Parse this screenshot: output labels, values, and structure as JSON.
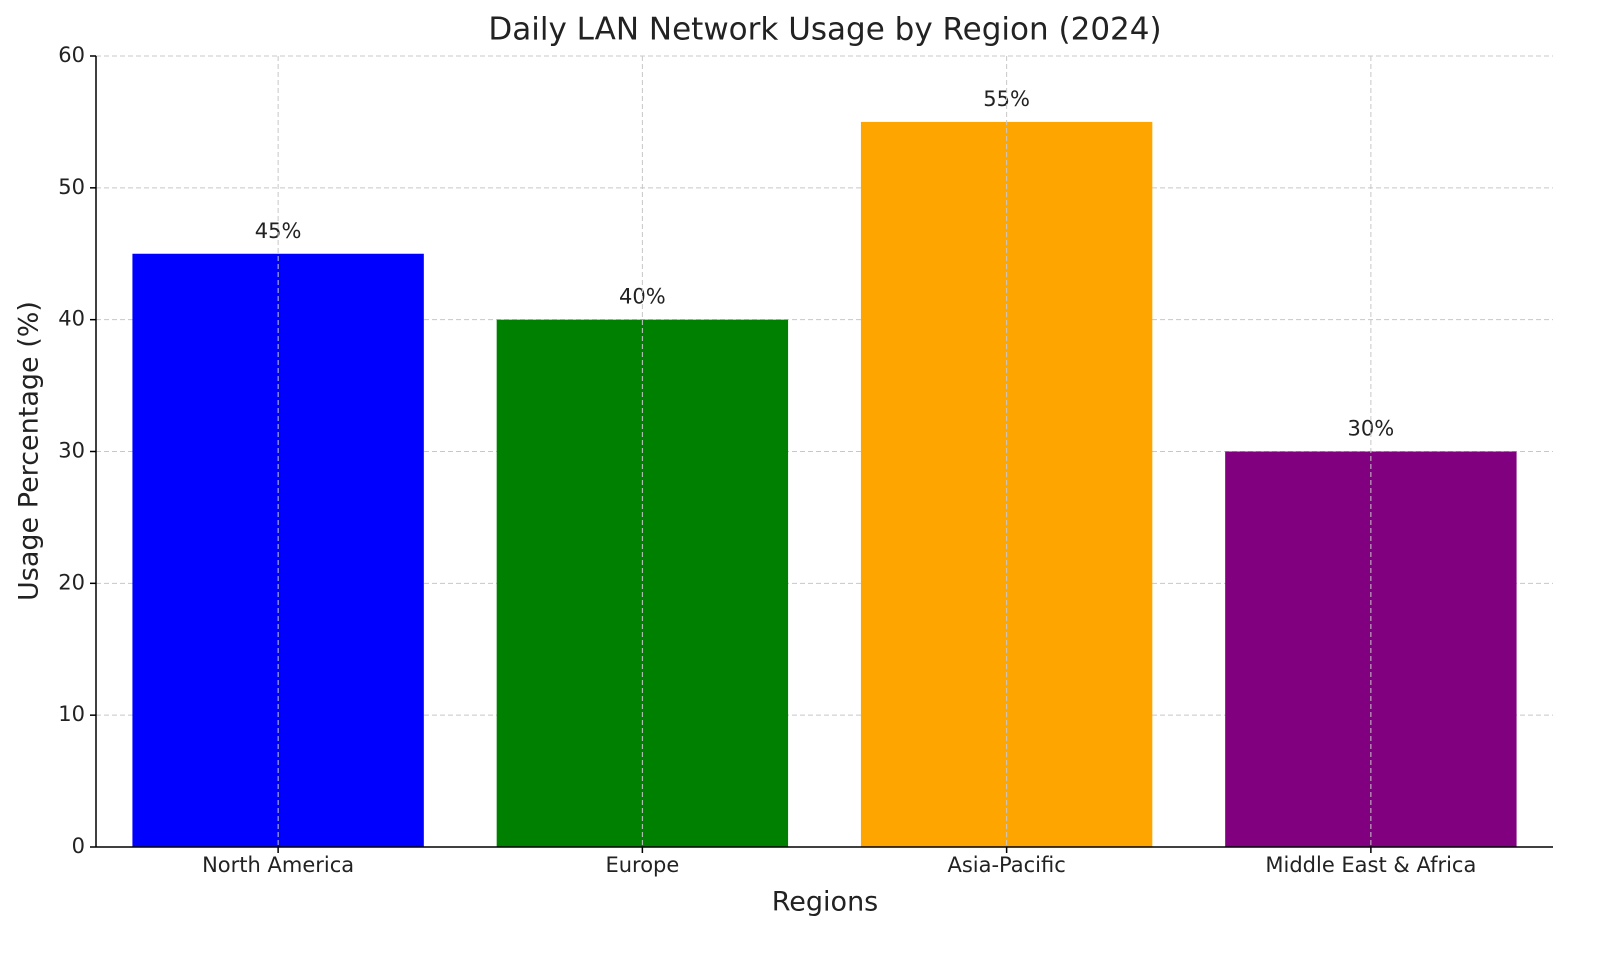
{
  "chart_data": {
    "type": "bar",
    "title": "Daily LAN Network Usage by Region (2024)",
    "x_label": "Regions",
    "y_label": "Usage Percentage (%)",
    "categories": [
      "North America",
      "Europe",
      "Asia-Pacific",
      "Middle East & Africa"
    ],
    "values": [
      45,
      40,
      55,
      30
    ],
    "value_labels": [
      "45%",
      "40%",
      "55%",
      "30%"
    ],
    "colors": [
      "#0000ff",
      "#008000",
      "#ffa500",
      "#800080"
    ],
    "ylim": [
      0,
      60
    ],
    "yticks": [
      0,
      10,
      20,
      30,
      40,
      50,
      60
    ],
    "grid": true
  }
}
